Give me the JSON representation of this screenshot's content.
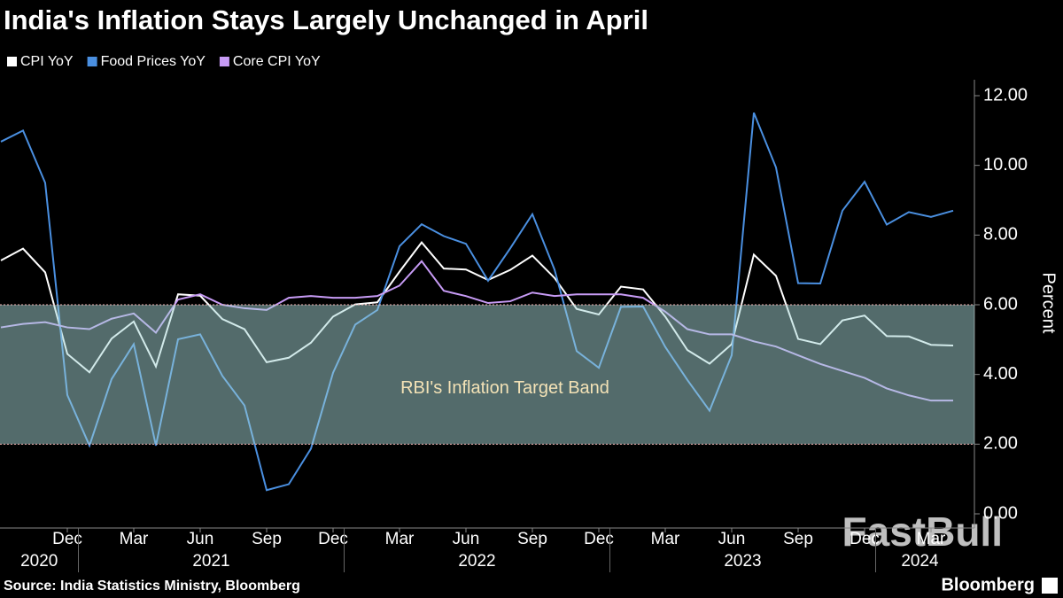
{
  "chart_data": {
    "type": "line",
    "title": "India's Inflation Stays Largely Unchanged in April",
    "source": "Source: India Statistics Ministry, Bloomberg",
    "brand": "Bloomberg",
    "watermark": "FastBull",
    "ylabel": "Percent",
    "x": [
      "2020-09",
      "2020-10",
      "2020-11",
      "2020-12",
      "2021-01",
      "2021-02",
      "2021-03",
      "2021-04",
      "2021-05",
      "2021-06",
      "2021-07",
      "2021-08",
      "2021-09",
      "2021-10",
      "2021-11",
      "2021-12",
      "2022-01",
      "2022-02",
      "2022-03",
      "2022-04",
      "2022-05",
      "2022-06",
      "2022-07",
      "2022-08",
      "2022-09",
      "2022-10",
      "2022-11",
      "2022-12",
      "2023-01",
      "2023-02",
      "2023-03",
      "2023-04",
      "2023-05",
      "2023-06",
      "2023-07",
      "2023-08",
      "2023-09",
      "2023-10",
      "2023-11",
      "2023-12",
      "2024-01",
      "2024-02",
      "2024-03",
      "2024-04"
    ],
    "xticks": [
      {
        "value": "2020-12",
        "label": "Dec"
      },
      {
        "value": "2021-03",
        "label": "Mar"
      },
      {
        "value": "2021-06",
        "label": "Jun"
      },
      {
        "value": "2021-09",
        "label": "Sep"
      },
      {
        "value": "2021-12",
        "label": "Dec"
      },
      {
        "value": "2022-03",
        "label": "Mar"
      },
      {
        "value": "2022-06",
        "label": "Jun"
      },
      {
        "value": "2022-09",
        "label": "Sep"
      },
      {
        "value": "2022-12",
        "label": "Dec"
      },
      {
        "value": "2023-03",
        "label": "Mar"
      },
      {
        "value": "2023-06",
        "label": "Jun"
      },
      {
        "value": "2023-09",
        "label": "Sep"
      },
      {
        "value": "2023-12",
        "label": "Dec"
      },
      {
        "value": "2024-03",
        "label": "Mar"
      }
    ],
    "xyears": [
      2020,
      2021,
      2022,
      2023,
      2024
    ],
    "ylim": [
      0,
      12
    ],
    "yticks": [
      {
        "value": 0,
        "label": "0.00"
      },
      {
        "value": 2,
        "label": "2.00"
      },
      {
        "value": 4,
        "label": "4.00"
      },
      {
        "value": 6,
        "label": "6.00"
      },
      {
        "value": 8,
        "label": "8.00"
      },
      {
        "value": 10,
        "label": "10.00"
      },
      {
        "value": 12,
        "label": "12.00"
      }
    ],
    "target_band": {
      "range": [
        2,
        6
      ],
      "label": "RBI's Inflation Target Band",
      "color": "rgba(166,214,214,0.5)"
    },
    "series": [
      {
        "name": "CPI YoY",
        "color": "#ffffff",
        "values": [
          7.27,
          7.61,
          6.93,
          4.59,
          4.06,
          5.03,
          5.52,
          4.23,
          6.3,
          6.26,
          5.59,
          5.3,
          4.35,
          4.48,
          4.91,
          5.66,
          6.01,
          6.07,
          6.95,
          7.79,
          7.04,
          7.01,
          6.71,
          7.0,
          7.41,
          6.77,
          5.88,
          5.72,
          6.52,
          6.44,
          5.66,
          4.7,
          4.31,
          4.87,
          7.44,
          6.83,
          5.02,
          4.87,
          5.55,
          5.69,
          5.1,
          5.09,
          4.85,
          4.83
        ]
      },
      {
        "name": "Food Prices YoY",
        "color": "#4a8fe0",
        "values": [
          10.68,
          11.0,
          9.5,
          3.41,
          1.96,
          3.87,
          4.87,
          1.96,
          5.01,
          5.15,
          3.96,
          3.11,
          0.68,
          0.85,
          1.87,
          4.05,
          5.43,
          5.85,
          7.68,
          8.31,
          7.97,
          7.75,
          6.69,
          7.62,
          8.6,
          7.01,
          4.67,
          4.19,
          5.94,
          5.95,
          4.79,
          3.84,
          2.96,
          4.55,
          11.51,
          9.94,
          6.62,
          6.61,
          8.7,
          9.53,
          8.3,
          8.66,
          8.52,
          8.7
        ]
      },
      {
        "name": "Core CPI YoY",
        "color": "#c79bf5",
        "values": [
          5.35,
          5.45,
          5.5,
          5.35,
          5.3,
          5.6,
          5.75,
          5.2,
          6.15,
          6.3,
          6.0,
          5.9,
          5.85,
          6.2,
          6.25,
          6.2,
          6.2,
          6.25,
          6.55,
          7.25,
          6.4,
          6.25,
          6.05,
          6.1,
          6.35,
          6.25,
          6.3,
          6.3,
          6.3,
          6.2,
          5.8,
          5.3,
          5.15,
          5.15,
          4.95,
          4.8,
          4.55,
          4.3,
          4.1,
          3.9,
          3.6,
          3.4,
          3.25,
          3.25
        ]
      }
    ]
  }
}
